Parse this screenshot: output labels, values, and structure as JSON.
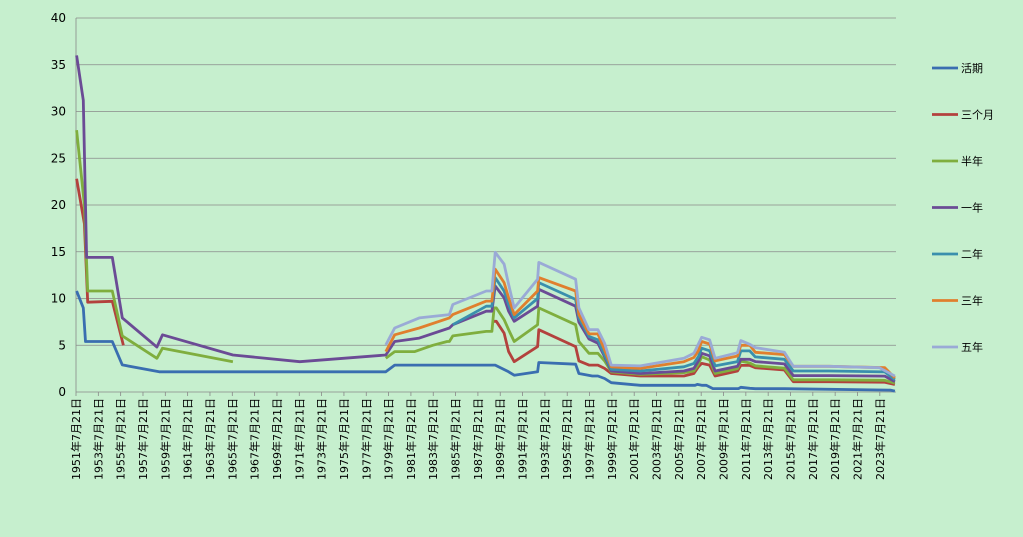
{
  "chart_data": {
    "type": "line",
    "title": "",
    "xlabel": "",
    "ylabel": "",
    "ylim": [
      0,
      40
    ],
    "yticks": [
      0,
      5,
      10,
      15,
      20,
      25,
      30,
      35,
      40
    ],
    "xlim": [
      1951.55,
      2025.0
    ],
    "xticks": [
      "1951年7月21日",
      "1953年7月21日",
      "1955年7月21日",
      "1957年7月21日",
      "1959年7月21日",
      "1961年7月21日",
      "1963年7月21日",
      "1965年7月21日",
      "1967年7月21日",
      "1969年7月21日",
      "1971年7月21日",
      "1973年7月21日",
      "1975年7月21日",
      "1977年7月21日",
      "1979年7月21日",
      "1981年7月21日",
      "1983年7月21日",
      "1985年7月21日",
      "1987年7月21日",
      "1989年7月21日",
      "1991年7月21日",
      "1993年7月21日",
      "1995年7月21日",
      "1997年7月21日",
      "1999年7月21日",
      "2001年7月21日",
      "2003年7月21日",
      "2005年7月21日",
      "2007年7月21日",
      "2009年7月21日",
      "2011年7月21日",
      "2013年7月21日",
      "2015年7月21日",
      "2017年7月21日",
      "2019年7月21日",
      "2021年7月21日",
      "2023年7月21日"
    ],
    "grid": "horizontal",
    "legend_position": "right",
    "series": [
      {
        "name": "活期",
        "color": "#3a6eb0",
        "points": [
          [
            1951.6,
            10.8
          ],
          [
            1952.2,
            9
          ],
          [
            1952.4,
            5.4
          ],
          [
            1954.8,
            5.4
          ],
          [
            1955.7,
            2.9
          ],
          [
            1959.0,
            2.16
          ],
          [
            1971.0,
            2.16
          ],
          [
            1979.3,
            2.16
          ],
          [
            1980.1,
            2.88
          ],
          [
            1988.8,
            2.88
          ],
          [
            1989.1,
            2.88
          ],
          [
            1990.3,
            2.16
          ],
          [
            1990.8,
            1.8
          ],
          [
            1992.9,
            2.16
          ],
          [
            1993.0,
            3.15
          ],
          [
            1996.3,
            2.97
          ],
          [
            1996.6,
            1.98
          ],
          [
            1997.8,
            1.71
          ],
          [
            1998.3,
            1.71
          ],
          [
            1998.9,
            1.44
          ],
          [
            1999.5,
            0.99
          ],
          [
            2002.1,
            0.72
          ],
          [
            2007.0,
            0.72
          ],
          [
            2007.2,
            0.81
          ],
          [
            2007.6,
            0.72
          ],
          [
            2008.0,
            0.72
          ],
          [
            2008.6,
            0.36
          ],
          [
            2010.9,
            0.36
          ],
          [
            2011.1,
            0.5
          ],
          [
            2011.9,
            0.4
          ],
          [
            2012.4,
            0.35
          ],
          [
            2015.0,
            0.35
          ],
          [
            2024.5,
            0.2
          ],
          [
            2024.9,
            0.1
          ]
        ]
      },
      {
        "name": "三个月",
        "color": "#b3413d",
        "points": [
          [
            1951.6,
            22.8
          ],
          [
            1952.3,
            18
          ],
          [
            1952.6,
            9.6
          ],
          [
            1954.8,
            9.7
          ],
          [
            1955.8,
            5.0
          ]
        ],
        "points2": [
          [
            1988.8,
            7.56
          ],
          [
            1989.2,
            7.56
          ],
          [
            1989.9,
            6.3
          ],
          [
            1990.3,
            4.32
          ],
          [
            1990.8,
            3.24
          ],
          [
            1992.9,
            4.86
          ],
          [
            1993.0,
            6.66
          ],
          [
            1996.3,
            4.86
          ],
          [
            1996.6,
            3.33
          ],
          [
            1997.5,
            2.88
          ],
          [
            1998.3,
            2.88
          ],
          [
            1998.9,
            2.52
          ],
          [
            1999.5,
            1.98
          ],
          [
            2002.1,
            1.71
          ],
          [
            2006.0,
            1.71
          ],
          [
            2006.9,
            1.98
          ],
          [
            2007.3,
            2.7
          ],
          [
            2007.6,
            3.06
          ],
          [
            2008.3,
            2.88
          ],
          [
            2008.8,
            1.71
          ],
          [
            2010.8,
            2.25
          ],
          [
            2011.1,
            2.85
          ],
          [
            2011.9,
            2.85
          ],
          [
            2012.4,
            2.6
          ],
          [
            2015.0,
            2.35
          ],
          [
            2015.8,
            1.1
          ],
          [
            2019.0,
            1.1
          ],
          [
            2024.0,
            1.05
          ],
          [
            2024.9,
            0.8
          ]
        ]
      },
      {
        "name": "半年",
        "color": "#7fae3e",
        "points": [
          [
            1951.6,
            28
          ],
          [
            1952.3,
            20
          ],
          [
            1952.6,
            10.8
          ],
          [
            1954.8,
            10.8
          ],
          [
            1955.7,
            6
          ],
          [
            1958.8,
            3.6
          ],
          [
            1959.3,
            4.68
          ],
          [
            1965.6,
            3.24
          ]
        ],
        "points2": [
          [
            1979.3,
            3.6
          ],
          [
            1980.1,
            4.32
          ],
          [
            1981.9,
            4.32
          ],
          [
            1983.5,
            5
          ],
          [
            1984.8,
            5.4
          ],
          [
            1985.0,
            5.4
          ],
          [
            1985.3,
            6
          ],
          [
            1988.3,
            6.48
          ],
          [
            1988.8,
            6.48
          ],
          [
            1989.0,
            9.0
          ],
          [
            1989.2,
            9.0
          ],
          [
            1989.9,
            7.74
          ],
          [
            1990.3,
            6.66
          ],
          [
            1990.8,
            5.4
          ],
          [
            1992.9,
            7.2
          ],
          [
            1993.0,
            9.0
          ],
          [
            1996.3,
            7.2
          ],
          [
            1996.6,
            5.4
          ],
          [
            1997.5,
            4.14
          ],
          [
            1998.3,
            4.14
          ],
          [
            1998.9,
            3.33
          ],
          [
            1999.5,
            2.16
          ],
          [
            2002.1,
            1.89
          ],
          [
            2006.0,
            2.07
          ],
          [
            2006.9,
            2.25
          ],
          [
            2007.3,
            2.97
          ],
          [
            2007.6,
            3.78
          ],
          [
            2008.3,
            3.42
          ],
          [
            2008.8,
            1.98
          ],
          [
            2010.8,
            2.5
          ],
          [
            2011.1,
            3.3
          ],
          [
            2011.9,
            3.1
          ],
          [
            2012.4,
            2.8
          ],
          [
            2015.0,
            2.55
          ],
          [
            2015.8,
            1.3
          ],
          [
            2019.0,
            1.3
          ],
          [
            2024.0,
            1.25
          ],
          [
            2024.9,
            0.95
          ]
        ]
      },
      {
        "name": "一年",
        "color": "#6b4b95",
        "points": [
          [
            1951.6,
            36
          ],
          [
            1952.2,
            31.2
          ],
          [
            1952.5,
            14.4
          ],
          [
            1954.8,
            14.4
          ],
          [
            1955.7,
            7.92
          ],
          [
            1958.8,
            4.8
          ],
          [
            1959.3,
            6.12
          ],
          [
            1965.6,
            3.96
          ],
          [
            1971.6,
            3.24
          ],
          [
            1979.3,
            3.96
          ],
          [
            1980.1,
            5.4
          ],
          [
            1982.3,
            5.76
          ],
          [
            1985.0,
            6.84
          ],
          [
            1985.3,
            7.2
          ],
          [
            1988.3,
            8.64
          ],
          [
            1988.8,
            8.64
          ],
          [
            1989.1,
            11.34
          ],
          [
            1989.9,
            10.08
          ],
          [
            1990.3,
            8.64
          ],
          [
            1990.8,
            7.56
          ],
          [
            1992.9,
            9.18
          ],
          [
            1993.0,
            10.98
          ],
          [
            1996.3,
            9.18
          ],
          [
            1996.6,
            7.47
          ],
          [
            1997.5,
            5.67
          ],
          [
            1998.3,
            5.22
          ],
          [
            1998.9,
            3.78
          ],
          [
            1999.5,
            2.25
          ],
          [
            2002.1,
            1.98
          ],
          [
            2006.0,
            2.25
          ],
          [
            2006.9,
            2.52
          ],
          [
            2007.3,
            3.33
          ],
          [
            2007.6,
            4.14
          ],
          [
            2008.3,
            3.87
          ],
          [
            2008.8,
            2.25
          ],
          [
            2010.8,
            2.75
          ],
          [
            2011.1,
            3.5
          ],
          [
            2011.9,
            3.5
          ],
          [
            2012.4,
            3.25
          ],
          [
            2015.0,
            3.0
          ],
          [
            2015.8,
            1.75
          ],
          [
            2019.0,
            1.75
          ],
          [
            2024.0,
            1.7
          ],
          [
            2024.9,
            1.1
          ]
        ]
      },
      {
        "name": "二年",
        "color": "#3a8fad",
        "points": [
          [
            1985.3,
            7.2
          ],
          [
            1988.3,
            9.18
          ],
          [
            1988.8,
            9.18
          ],
          [
            1989.1,
            12.24
          ],
          [
            1989.9,
            10.8
          ],
          [
            1990.3,
            9.36
          ],
          [
            1990.8,
            7.92
          ],
          [
            1992.9,
            10.0
          ],
          [
            1993.0,
            11.7
          ],
          [
            1996.3,
            9.9
          ],
          [
            1996.6,
            7.92
          ],
          [
            1997.5,
            5.94
          ],
          [
            1998.3,
            5.58
          ],
          [
            1998.9,
            3.96
          ],
          [
            1999.5,
            2.43
          ],
          [
            2002.1,
            2.25
          ],
          [
            2006.0,
            2.7
          ],
          [
            2006.9,
            3.06
          ],
          [
            2007.3,
            3.78
          ],
          [
            2007.6,
            4.68
          ],
          [
            2008.3,
            4.41
          ],
          [
            2008.8,
            2.79
          ],
          [
            2010.8,
            3.25
          ],
          [
            2011.1,
            4.4
          ],
          [
            2011.9,
            4.4
          ],
          [
            2012.4,
            3.75
          ],
          [
            2015.0,
            3.5
          ],
          [
            2015.8,
            2.25
          ],
          [
            2019.0,
            2.25
          ],
          [
            2024.0,
            2.15
          ],
          [
            2024.9,
            1.3
          ]
        ]
      },
      {
        "name": "三年",
        "color": "#e07f2e",
        "points": [
          [
            1979.3,
            4.32
          ],
          [
            1980.1,
            6.12
          ],
          [
            1982.3,
            6.84
          ],
          [
            1985.0,
            7.92
          ],
          [
            1985.3,
            8.28
          ],
          [
            1988.3,
            9.72
          ],
          [
            1988.8,
            9.72
          ],
          [
            1989.1,
            13.14
          ],
          [
            1989.9,
            11.7
          ],
          [
            1990.3,
            10.08
          ],
          [
            1990.8,
            8.28
          ],
          [
            1992.9,
            10.8
          ],
          [
            1993.0,
            12.24
          ],
          [
            1996.3,
            10.8
          ],
          [
            1996.6,
            8.28
          ],
          [
            1997.5,
            6.21
          ],
          [
            1998.3,
            6.21
          ],
          [
            1998.9,
            4.5
          ],
          [
            1999.5,
            2.7
          ],
          [
            2002.1,
            2.52
          ],
          [
            2006.0,
            3.24
          ],
          [
            2006.9,
            3.69
          ],
          [
            2007.3,
            4.41
          ],
          [
            2007.6,
            5.4
          ],
          [
            2008.3,
            5.13
          ],
          [
            2008.8,
            3.33
          ],
          [
            2010.8,
            3.85
          ],
          [
            2011.1,
            5.0
          ],
          [
            2011.9,
            5.0
          ],
          [
            2012.4,
            4.25
          ],
          [
            2015.0,
            4.0
          ],
          [
            2015.8,
            2.75
          ],
          [
            2019.0,
            2.75
          ],
          [
            2024.0,
            2.6
          ],
          [
            2024.9,
            1.5
          ]
        ]
      },
      {
        "name": "五年",
        "color": "#9aaad6",
        "points": [
          [
            1979.3,
            5.04
          ],
          [
            1980.1,
            6.84
          ],
          [
            1982.3,
            7.92
          ],
          [
            1985.0,
            8.28
          ],
          [
            1985.3,
            9.36
          ],
          [
            1988.3,
            10.8
          ],
          [
            1988.8,
            10.8
          ],
          [
            1989.1,
            14.94
          ],
          [
            1989.9,
            13.68
          ],
          [
            1990.3,
            11.52
          ],
          [
            1990.8,
            9.0
          ],
          [
            1992.9,
            12.06
          ],
          [
            1993.0,
            13.86
          ],
          [
            1996.3,
            12.06
          ],
          [
            1996.6,
            9.0
          ],
          [
            1997.5,
            6.66
          ],
          [
            1998.3,
            6.66
          ],
          [
            1998.9,
            5.22
          ],
          [
            1999.5,
            2.88
          ],
          [
            2002.1,
            2.79
          ],
          [
            2006.0,
            3.6
          ],
          [
            2006.9,
            4.14
          ],
          [
            2007.3,
            5.13
          ],
          [
            2007.6,
            5.85
          ],
          [
            2008.3,
            5.58
          ],
          [
            2008.8,
            3.6
          ],
          [
            2010.8,
            4.2
          ],
          [
            2011.1,
            5.5
          ],
          [
            2011.9,
            5.1
          ],
          [
            2012.4,
            4.75
          ],
          [
            2015.0,
            4.25
          ],
          [
            2015.8,
            2.75
          ],
          [
            2019.0,
            2.75
          ],
          [
            2023.5,
            2.6
          ],
          [
            2024.9,
            1.7
          ]
        ]
      }
    ]
  }
}
